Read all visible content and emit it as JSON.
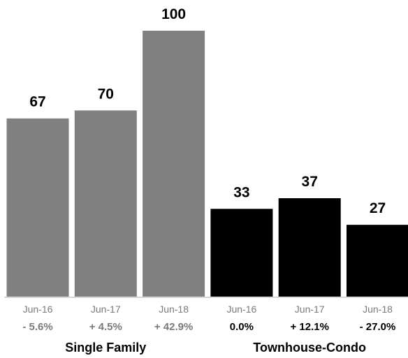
{
  "chart_data": {
    "type": "bar",
    "title": "",
    "xlabel": "",
    "ylabel": "",
    "ylim": [
      0,
      100
    ],
    "grid": false,
    "legend": "none",
    "groups": [
      {
        "name": "Single Family",
        "color": "#808080",
        "pct_color": "#7a7a7a",
        "bars": [
          {
            "category": "Jun-16",
            "value": 67,
            "label": "67",
            "change": "- 5.6%"
          },
          {
            "category": "Jun-17",
            "value": 70,
            "label": "70",
            "change": "+ 4.5%"
          },
          {
            "category": "Jun-18",
            "value": 100,
            "label": "100",
            "change": "+ 42.9%"
          }
        ]
      },
      {
        "name": "Townhouse-Condo",
        "color": "#000000",
        "pct_color": "#000000",
        "bars": [
          {
            "category": "Jun-16",
            "value": 33,
            "label": "33",
            "change": "0.0%"
          },
          {
            "category": "Jun-17",
            "value": 37,
            "label": "37",
            "change": "+ 12.1%"
          },
          {
            "category": "Jun-18",
            "value": 27,
            "label": "27",
            "change": "- 27.0%"
          }
        ]
      }
    ]
  }
}
